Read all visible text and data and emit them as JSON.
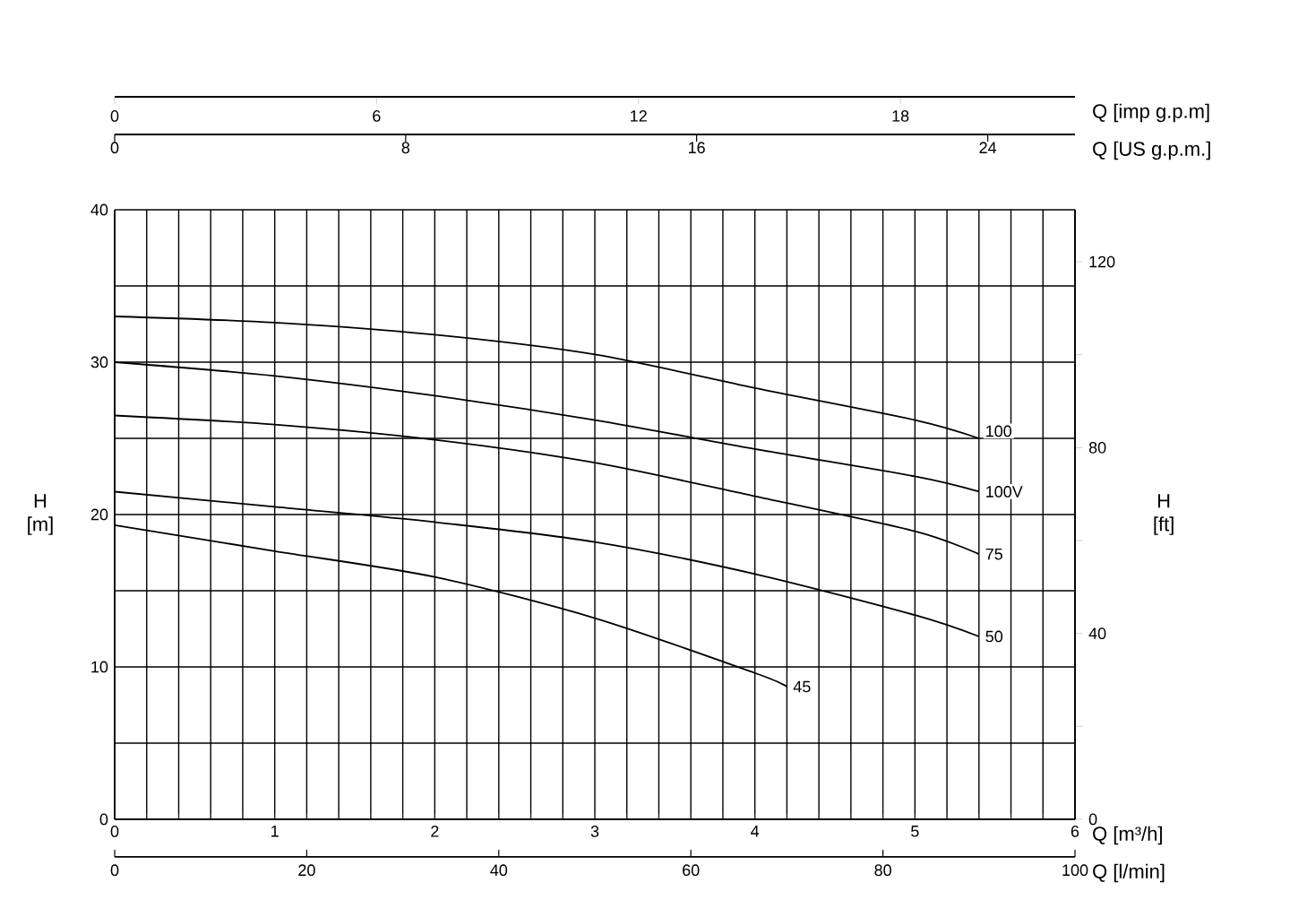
{
  "chart_data": {
    "type": "line",
    "xlabel": "Q [m³/h]",
    "ylabel": "H [m]",
    "y2label": "H [ft]",
    "x2label": "Q [imp g.p.m]",
    "annotations": [
      "Q [US g.p.m.]",
      "0",
      "8",
      "16",
      "24",
      "Q [l/min]",
      "0",
      "20",
      "40",
      "60",
      "80",
      "100"
    ],
    "xlim": [
      0,
      6
    ],
    "ylim": [
      0,
      40
    ],
    "xticks": [
      0,
      {
        "value": 0.2,
        "label": null
      },
      {
        "value": 0.4,
        "label": null
      },
      {
        "value": 0.6,
        "label": null
      },
      {
        "value": 0.8,
        "label": null
      },
      1,
      {
        "value": 1.2,
        "label": null
      },
      {
        "value": 1.4,
        "label": null
      },
      {
        "value": 1.6,
        "label": null
      },
      {
        "value": 1.8,
        "label": null
      },
      2,
      {
        "value": 2.2,
        "label": null
      },
      {
        "value": 2.4,
        "label": null
      },
      {
        "value": 2.6,
        "label": null
      },
      {
        "value": 2.8,
        "label": null
      },
      3,
      {
        "value": 3.2,
        "label": null
      },
      {
        "value": 3.4,
        "label": null
      },
      {
        "value": 3.6,
        "label": null
      },
      {
        "value": 3.8,
        "label": null
      },
      4,
      {
        "value": 4.2,
        "label": null
      },
      {
        "value": 4.4,
        "label": null
      },
      {
        "value": 4.6,
        "label": null
      },
      {
        "value": 4.8,
        "label": null
      },
      5,
      {
        "value": 5.2,
        "label": null
      },
      {
        "value": 5.4,
        "label": null
      },
      {
        "value": 5.6,
        "label": null
      },
      {
        "value": 5.8,
        "label": null
      },
      6
    ],
    "yticks": [
      0,
      {
        "value": 5,
        "label": null
      },
      10,
      {
        "value": 15,
        "label": null
      },
      20,
      {
        "value": 25,
        "label": null
      },
      30,
      {
        "value": 35,
        "label": null
      },
      40
    ],
    "y2lim": [
      0,
      131.2
    ],
    "y2ticks": [
      0,
      {
        "value": 20,
        "label": null
      },
      40,
      {
        "value": 60,
        "label": null
      },
      80,
      {
        "value": 100,
        "label": null
      },
      120
    ],
    "x2lim": [
      0,
      22.0
    ],
    "x2ticks": [
      0,
      6,
      12,
      18
    ],
    "grid": true,
    "series": [
      {
        "name": "100",
        "color": "#000000",
        "x": [
          0,
          1,
          2,
          3,
          4,
          5,
          5.4
        ],
        "values": [
          33,
          32.6,
          31.8,
          30.5,
          28.3,
          26.2,
          25
        ]
      },
      {
        "name": "100V",
        "color": "#000000",
        "x": [
          0,
          1,
          2,
          3,
          4,
          5,
          5.4
        ],
        "values": [
          30,
          29.1,
          27.8,
          26.2,
          24.3,
          22.5,
          21.5
        ]
      },
      {
        "name": "75",
        "color": "#000000",
        "x": [
          0,
          1,
          2,
          3,
          4,
          5,
          5.4
        ],
        "values": [
          26.5,
          25.9,
          24.9,
          23.4,
          21.2,
          18.9,
          17.4
        ]
      },
      {
        "name": "50",
        "color": "#000000",
        "x": [
          0,
          1,
          2,
          3,
          4,
          5,
          5.4
        ],
        "values": [
          21.5,
          20.5,
          19.5,
          18.2,
          16.1,
          13.4,
          12
        ]
      },
      {
        "name": "45",
        "color": "#000000",
        "x": [
          0,
          1,
          2,
          3,
          4,
          4.2
        ],
        "values": [
          19.3,
          17.6,
          15.9,
          13.2,
          9.6,
          8.7
        ]
      }
    ]
  }
}
